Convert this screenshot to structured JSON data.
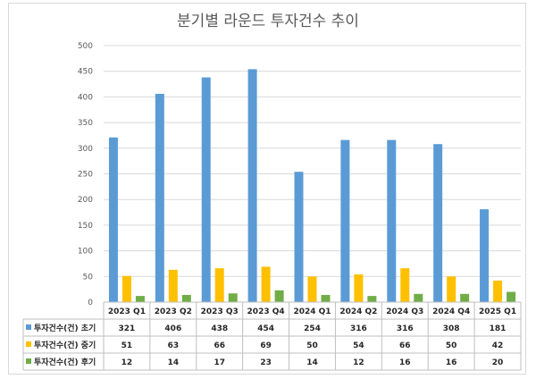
{
  "chart_data": {
    "type": "bar",
    "title": "분기별 라운드 투자건수 추이",
    "categories": [
      "2023 Q1",
      "2023 Q2",
      "2023 Q3",
      "2023 Q4",
      "2024 Q1",
      "2024 Q2",
      "2024 Q3",
      "2024 Q4",
      "2025 Q1"
    ],
    "series": [
      {
        "name": "투자건수(건) 초기",
        "color": "#5b9bd5",
        "values": [
          321,
          406,
          438,
          454,
          254,
          316,
          316,
          308,
          181
        ]
      },
      {
        "name": "투자건수(건) 중기",
        "color": "#ffc000",
        "values": [
          51,
          63,
          66,
          69,
          50,
          54,
          66,
          50,
          42
        ]
      },
      {
        "name": "투자건수(건) 후기",
        "color": "#70ad47",
        "values": [
          12,
          14,
          17,
          23,
          14,
          12,
          16,
          16,
          20
        ]
      }
    ],
    "ylim": [
      0,
      500
    ],
    "yticks": [
      0,
      50,
      100,
      150,
      200,
      250,
      300,
      350,
      400,
      450,
      500
    ],
    "grid": true,
    "legend": "data-table-below"
  }
}
